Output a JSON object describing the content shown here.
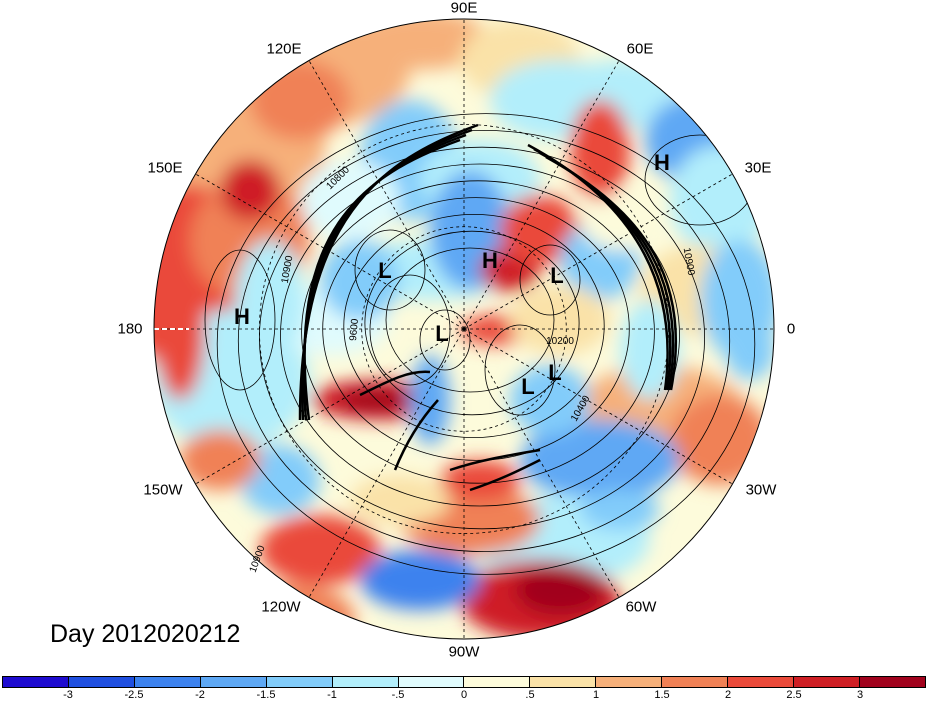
{
  "map": {
    "projection": "polar stereographic, north pole",
    "longitude_labels": [
      "90E",
      "60E",
      "30E",
      "0",
      "30W",
      "60W",
      "90W",
      "120W",
      "150W",
      "180",
      "150E",
      "120E"
    ],
    "pressure_centers": [
      "H",
      "H",
      "H",
      "L",
      "L",
      "L",
      "L",
      "L"
    ],
    "contour_labels": [
      "10900",
      "10800",
      "10900",
      "9600",
      "10200",
      "10400",
      "10900"
    ]
  },
  "title": "Day 2012020212",
  "colorbar": {
    "colors": [
      "#1e0bd0",
      "#1f4fe0",
      "#3c82ee",
      "#5ea8f4",
      "#82ccfa",
      "#b2eefb",
      "#e0fbfd",
      "#fdfbdb",
      "#fae2a8",
      "#f6b07a",
      "#f08156",
      "#ea4a3a",
      "#cf1f25",
      "#a1021d"
    ],
    "tick_labels": [
      "-3",
      "-2.5",
      "-2",
      "-1.5",
      "-1",
      "-.5",
      "0",
      ".5",
      "1",
      "1.5",
      "2",
      "2.5",
      "3"
    ]
  }
}
